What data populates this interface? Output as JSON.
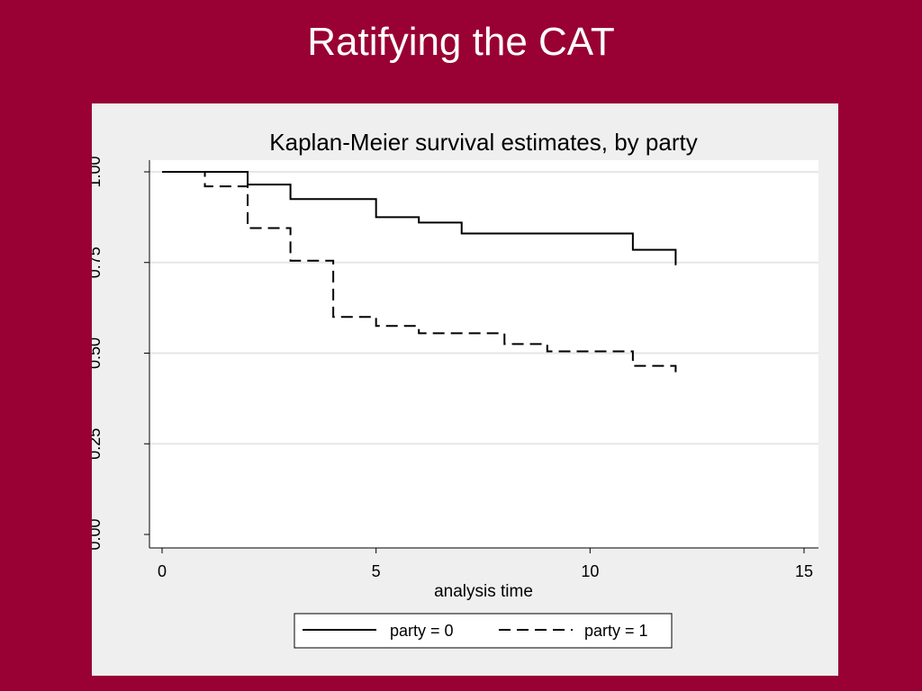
{
  "slide": {
    "title": "Ratifying the CAT"
  },
  "chart_data": {
    "type": "line",
    "step": true,
    "title": "Kaplan-Meier survival estimates, by party",
    "xlabel": "analysis time",
    "ylabel": "",
    "xlim": [
      0,
      15
    ],
    "ylim": [
      0,
      1
    ],
    "x_ticks": [
      "0",
      "5",
      "10",
      "15"
    ],
    "y_ticks": [
      "0.00",
      "0.25",
      "0.50",
      "0.75",
      "1.00"
    ],
    "grid": true,
    "legend_position": "bottom",
    "series": [
      {
        "name": "party = 0",
        "line_style": "solid",
        "color": "#000000",
        "x": [
          0,
          2,
          3,
          5,
          6,
          7,
          11,
          12
        ],
        "y": [
          1.0,
          0.965,
          0.925,
          0.875,
          0.86,
          0.83,
          0.785,
          0.745
        ]
      },
      {
        "name": "party = 1",
        "line_style": "dashed",
        "color": "#000000",
        "x": [
          0,
          1,
          2,
          3,
          4,
          5,
          6,
          8,
          9,
          11,
          12
        ],
        "y": [
          1.0,
          0.96,
          0.845,
          0.755,
          0.6,
          0.575,
          0.555,
          0.525,
          0.505,
          0.465,
          0.45
        ]
      }
    ]
  }
}
